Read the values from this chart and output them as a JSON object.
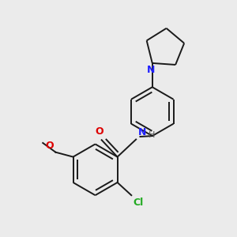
{
  "bg_color": "#ebebeb",
  "bond_color": "#1a1a1a",
  "N_color": "#2020ff",
  "O_color": "#dd0000",
  "Cl_color": "#22aa22",
  "H_color": "#555555",
  "line_width": 1.4,
  "figsize": [
    3.0,
    3.0
  ],
  "dpi": 100,
  "xlim": [
    0,
    10
  ],
  "ylim": [
    0,
    10
  ]
}
